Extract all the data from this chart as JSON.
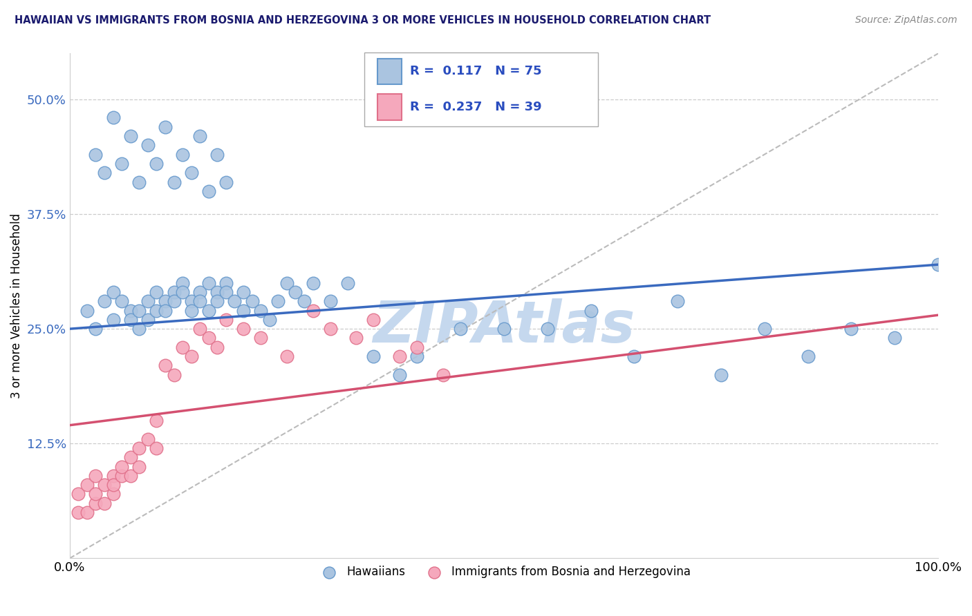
{
  "title": "HAWAIIAN VS IMMIGRANTS FROM BOSNIA AND HERZEGOVINA 3 OR MORE VEHICLES IN HOUSEHOLD CORRELATION CHART",
  "source": "Source: ZipAtlas.com",
  "ylabel": "3 or more Vehicles in Household",
  "xlabel": "",
  "xlim": [
    0.0,
    100.0
  ],
  "ylim": [
    0.0,
    55.0
  ],
  "x_ticks": [
    0.0,
    100.0
  ],
  "x_tick_labels": [
    "0.0%",
    "100.0%"
  ],
  "y_ticks": [
    12.5,
    25.0,
    37.5,
    50.0
  ],
  "y_tick_labels": [
    "12.5%",
    "25.0%",
    "37.5%",
    "50.0%"
  ],
  "hawaiian_R": 0.117,
  "hawaiian_N": 75,
  "bosnia_R": 0.237,
  "bosnia_N": 39,
  "hawaiian_color": "#aac4e0",
  "hawaiian_edge_color": "#6699cc",
  "bosnia_color": "#f5a8bc",
  "bosnia_edge_color": "#e0708a",
  "trend_hawaiian_color": "#3a6abf",
  "trend_bosnia_color": "#d45070",
  "trend_dashed_color": "#bbbbbb",
  "background_color": "#ffffff",
  "grid_color": "#cccccc",
  "title_color": "#1a1a6e",
  "watermark_color": "#c5d8ee",
  "legend_R_color": "#2a4dbf",
  "hawaiian_scatter_x": [
    2,
    3,
    4,
    5,
    5,
    6,
    7,
    7,
    8,
    8,
    9,
    9,
    10,
    10,
    11,
    11,
    12,
    12,
    13,
    13,
    14,
    14,
    15,
    15,
    16,
    16,
    17,
    17,
    18,
    18,
    19,
    20,
    20,
    21,
    22,
    23,
    24,
    25,
    26,
    27,
    28,
    30,
    32,
    35,
    38,
    40,
    45,
    50,
    55,
    60,
    65,
    70,
    75,
    80,
    85,
    90,
    95,
    100,
    3,
    4,
    5,
    6,
    7,
    8,
    9,
    10,
    11,
    12,
    13,
    14,
    15,
    16,
    17,
    18
  ],
  "hawaiian_scatter_y": [
    27,
    25,
    28,
    26,
    29,
    28,
    27,
    26,
    25,
    27,
    26,
    28,
    27,
    29,
    28,
    27,
    29,
    28,
    30,
    29,
    28,
    27,
    29,
    28,
    30,
    27,
    29,
    28,
    30,
    29,
    28,
    27,
    29,
    28,
    27,
    26,
    28,
    30,
    29,
    28,
    30,
    28,
    30,
    22,
    20,
    22,
    25,
    25,
    25,
    27,
    22,
    28,
    20,
    25,
    22,
    25,
    24,
    32,
    44,
    42,
    48,
    43,
    46,
    41,
    45,
    43,
    47,
    41,
    44,
    42,
    46,
    40,
    44,
    41
  ],
  "bosnia_scatter_x": [
    1,
    1,
    2,
    2,
    3,
    3,
    3,
    4,
    4,
    5,
    5,
    5,
    6,
    6,
    7,
    7,
    8,
    8,
    9,
    10,
    10,
    11,
    12,
    13,
    14,
    15,
    16,
    17,
    18,
    20,
    22,
    25,
    28,
    30,
    33,
    35,
    38,
    40,
    43
  ],
  "bosnia_scatter_y": [
    5,
    7,
    5,
    8,
    6,
    9,
    7,
    6,
    8,
    7,
    9,
    8,
    9,
    10,
    9,
    11,
    10,
    12,
    13,
    12,
    15,
    21,
    20,
    23,
    22,
    25,
    24,
    23,
    26,
    25,
    24,
    22,
    27,
    25,
    24,
    26,
    22,
    23,
    20
  ],
  "hawaiian_trend_x": [
    0,
    100
  ],
  "hawaiian_trend_y": [
    25.0,
    32.0
  ],
  "bosnia_trend_x": [
    0,
    100
  ],
  "bosnia_trend_y": [
    14.5,
    26.5
  ],
  "dashed_trend_x": [
    0,
    100
  ],
  "dashed_trend_y": [
    0,
    55
  ]
}
